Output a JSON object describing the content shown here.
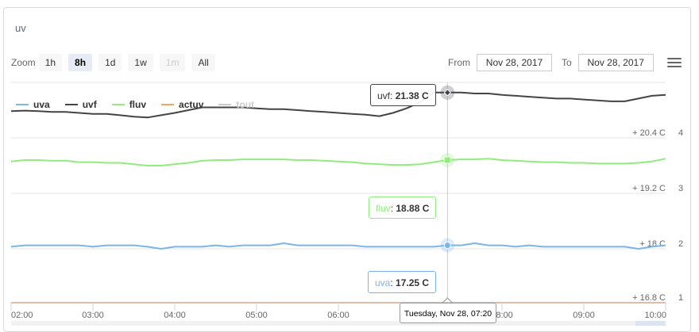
{
  "title": "uv",
  "toolbar": {
    "zoom_label": "Zoom",
    "buttons": [
      {
        "label": "1h",
        "state": "normal"
      },
      {
        "label": "8h",
        "state": "active"
      },
      {
        "label": "1d",
        "state": "normal"
      },
      {
        "label": "1w",
        "state": "normal"
      },
      {
        "label": "1m",
        "state": "disabled"
      },
      {
        "label": "All",
        "state": "normal"
      }
    ],
    "from_label": "From",
    "from_value": "Nov 28, 2017",
    "to_label": "To",
    "to_value": "Nov 28, 2017",
    "menu_icon": "hamburger-icon"
  },
  "legend": [
    {
      "name": "uva",
      "color": "#7cb5ec",
      "visible": true
    },
    {
      "name": "uvf",
      "color": "#434348",
      "visible": true
    },
    {
      "name": "fluv",
      "color": "#90ed7d",
      "visible": true
    },
    {
      "name": "actuv",
      "color": "#f7a35c",
      "visible": true
    },
    {
      "name": "tout",
      "color": "#cccccc",
      "visible": false
    }
  ],
  "tooltips": {
    "uvf": {
      "name": "uvf",
      "value": "21.38 C"
    },
    "fluv": {
      "name": "fluv",
      "value": "18.88 C"
    },
    "uva": {
      "name": "uva",
      "value": "17.25 C"
    },
    "x": "Tuesday, Nov 28, 07:20"
  },
  "chart_data": {
    "type": "line",
    "x_tick_labels": [
      "02:00",
      "03:00",
      "04:00",
      "05:00",
      "06:00",
      "07:00",
      "08:00",
      "09:00",
      "10:00"
    ],
    "x": [
      "02:00",
      "02:10",
      "02:20",
      "02:30",
      "02:40",
      "02:50",
      "03:00",
      "03:10",
      "03:20",
      "03:30",
      "03:40",
      "03:50",
      "04:00",
      "04:10",
      "04:20",
      "04:30",
      "04:40",
      "04:50",
      "05:00",
      "05:10",
      "05:20",
      "05:30",
      "05:40",
      "05:50",
      "06:00",
      "06:10",
      "06:20",
      "06:30",
      "06:40",
      "06:50",
      "07:00",
      "07:10",
      "07:20",
      "07:30",
      "07:40",
      "07:50",
      "08:00",
      "08:10",
      "08:20",
      "08:30",
      "08:40",
      "08:50",
      "09:00",
      "09:10",
      "09:20",
      "09:30",
      "09:40",
      "09:50",
      "10:00"
    ],
    "series": [
      {
        "name": "uva",
        "color": "#7cb5ec",
        "values": [
          17.23,
          17.25,
          17.25,
          17.25,
          17.25,
          17.25,
          17.23,
          17.25,
          17.25,
          17.25,
          17.23,
          17.2,
          17.23,
          17.23,
          17.23,
          17.25,
          17.23,
          17.25,
          17.25,
          17.25,
          17.28,
          17.25,
          17.25,
          17.25,
          17.25,
          17.25,
          17.23,
          17.23,
          17.23,
          17.23,
          17.23,
          17.23,
          17.25,
          17.25,
          17.28,
          17.25,
          17.25,
          17.23,
          17.25,
          17.23,
          17.23,
          17.23,
          17.23,
          17.23,
          17.23,
          17.23,
          17.2,
          17.23,
          17.25
        ]
      },
      {
        "name": "uvf",
        "color": "#434348",
        "values": [
          20.98,
          20.99,
          20.98,
          20.96,
          20.96,
          20.94,
          20.92,
          20.92,
          20.89,
          20.86,
          20.84,
          20.89,
          20.94,
          21.0,
          21.06,
          21.06,
          21.06,
          21.06,
          21.04,
          21.02,
          21.02,
          21.0,
          20.98,
          20.96,
          20.94,
          20.92,
          20.9,
          20.87,
          20.94,
          21.04,
          21.17,
          21.38,
          21.38,
          21.38,
          21.36,
          21.36,
          21.33,
          21.31,
          21.29,
          21.27,
          21.25,
          21.25,
          21.23,
          21.21,
          21.19,
          21.19,
          21.25,
          21.31,
          21.33
        ]
      },
      {
        "name": "fluv",
        "color": "#90ed7d",
        "values": [
          18.86,
          18.88,
          18.88,
          18.87,
          18.87,
          18.85,
          18.85,
          18.84,
          18.84,
          18.82,
          18.8,
          18.8,
          18.82,
          18.84,
          18.87,
          18.88,
          18.88,
          18.89,
          18.89,
          18.89,
          18.89,
          18.88,
          18.88,
          18.87,
          18.86,
          18.85,
          18.83,
          18.82,
          18.81,
          18.81,
          18.82,
          18.85,
          18.88,
          18.89,
          18.89,
          18.9,
          18.88,
          18.87,
          18.86,
          18.85,
          18.85,
          18.84,
          18.84,
          18.83,
          18.83,
          18.83,
          18.84,
          18.86,
          18.9
        ]
      },
      {
        "name": "actuv",
        "color": "#f7a35c",
        "values": [
          16.8,
          16.8,
          16.8,
          16.8,
          16.8,
          16.8,
          16.8,
          16.8,
          16.8,
          16.8,
          16.8,
          16.8,
          16.8,
          16.8,
          16.8,
          16.8,
          16.8,
          16.8,
          16.8,
          16.8,
          16.8,
          16.8,
          16.8,
          16.8,
          16.8,
          16.8,
          16.8,
          16.8,
          16.8,
          16.8,
          16.8,
          16.8,
          16.8,
          16.8,
          16.8,
          16.8,
          16.8,
          16.8,
          16.8,
          16.8,
          16.8,
          16.8,
          16.8,
          16.8,
          16.8,
          16.8,
          16.8,
          16.8,
          16.8
        ]
      }
    ],
    "y_axes": [
      {
        "label": "4",
        "unit_label": "+ 20.4 C",
        "range": [
          20.4,
          21.6
        ]
      },
      {
        "label": "3",
        "unit_label": "+ 19.2 C",
        "range": [
          18.4,
          19.2
        ]
      },
      {
        "label": "2",
        "unit_label": "+ 18 C",
        "range": [
          17.2,
          18.0
        ]
      },
      {
        "label": "1",
        "unit_label": "+ 16.8 C",
        "range": [
          16.8,
          17.6
        ]
      }
    ],
    "grid": true,
    "legend_position": "top-left",
    "crosshair_x": "07:20"
  }
}
